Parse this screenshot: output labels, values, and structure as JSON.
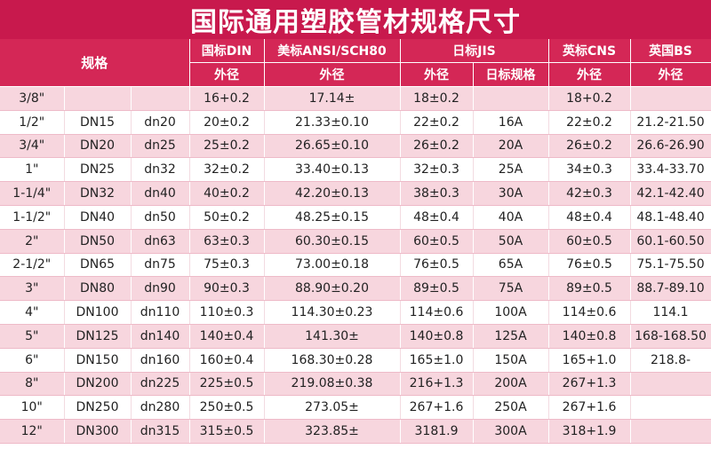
{
  "title": "国际通用塑胶管材规格尺寸",
  "header": {
    "spec": "规格",
    "din": "国标DIN",
    "ansi": "美标ANSI/SCH80",
    "jis": "日标JIS",
    "cns": "英标CNS",
    "bs": "英国BS",
    "od_din": "外径",
    "od_ansi": "外径",
    "od_jis": "外径",
    "jis_spec": "日标规格",
    "od_cns": "外径",
    "od_bs": "外径"
  },
  "colors": {
    "header_bg": "#d42756",
    "title_bg": "#c8194d",
    "row_pink": "#f7d6de"
  },
  "rows": [
    [
      "3/8\"",
      "",
      "",
      "16+0.2",
      "17.14±",
      "18±0.2",
      "",
      "18+0.2",
      ""
    ],
    [
      "1/2\"",
      "DN15",
      "dn20",
      "20±0.2",
      "21.33±0.10",
      "22±0.2",
      "16A",
      "22±0.2",
      "21.2-21.50"
    ],
    [
      "3/4\"",
      "DN20",
      "dn25",
      "25±0.2",
      "26.65±0.10",
      "26±0.2",
      "20A",
      "26±0.2",
      "26.6-26.90"
    ],
    [
      "1\"",
      "DN25",
      "dn32",
      "32±0.2",
      "33.40±0.13",
      "32±0.3",
      "25A",
      "34±0.3",
      "33.4-33.70"
    ],
    [
      "1-1/4\"",
      "DN32",
      "dn40",
      "40±0.2",
      "42.20±0.13",
      "38±0.3",
      "30A",
      "42±0.3",
      "42.1-42.40"
    ],
    [
      "1-1/2\"",
      "DN40",
      "dn50",
      "50±0.2",
      "48.25±0.15",
      "48±0.4",
      "40A",
      "48±0.4",
      "48.1-48.40"
    ],
    [
      "2\"",
      "DN50",
      "dn63",
      "63±0.3",
      "60.30±0.15",
      "60±0.5",
      "50A",
      "60±0.5",
      "60.1-60.50"
    ],
    [
      "2-1/2\"",
      "DN65",
      "dn75",
      "75±0.3",
      "73.00±0.18",
      "76±0.5",
      "65A",
      "76±0.5",
      "75.1-75.50"
    ],
    [
      "3\"",
      "DN80",
      "dn90",
      "90±0.3",
      "88.90±0.20",
      "89±0.5",
      "75A",
      "89±0.5",
      "88.7-89.10"
    ],
    [
      "4\"",
      "DN100",
      "dn110",
      "110±0.3",
      "114.30±0.23",
      "114±0.6",
      "100A",
      "114±0.6",
      "114.1"
    ],
    [
      "5\"",
      "DN125",
      "dn140",
      "140±0.4",
      "141.30±",
      "140±0.8",
      "125A",
      "140±0.8",
      "168-168.50"
    ],
    [
      "6\"",
      "DN150",
      "dn160",
      "160±0.4",
      "168.30±0.28",
      "165±1.0",
      "150A",
      "165+1.0",
      "218.8-"
    ],
    [
      "8\"",
      "DN200",
      "dn225",
      "225±0.5",
      "219.08±0.38",
      "216+1.3",
      "200A",
      "267+1.3",
      ""
    ],
    [
      "10\"",
      "DN250",
      "dn280",
      "250±0.5",
      "273.05±",
      "267+1.6",
      "250A",
      "267+1.6",
      ""
    ],
    [
      "12\"",
      "DN300",
      "dn315",
      "315±0.5",
      "323.85±",
      "3181.9",
      "300A",
      "318+1.9",
      ""
    ]
  ]
}
